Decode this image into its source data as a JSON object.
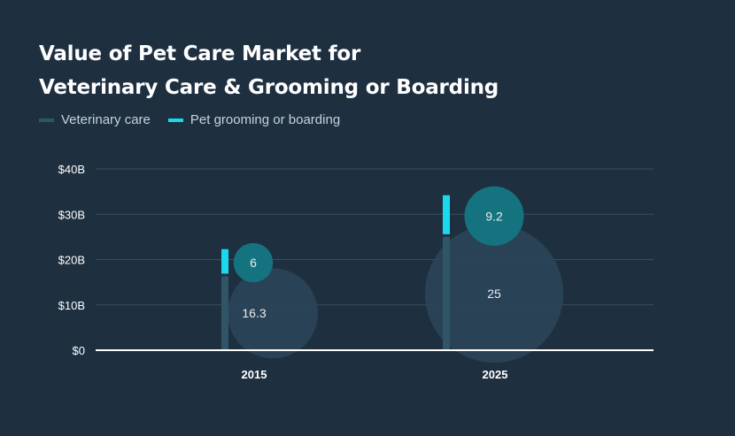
{
  "header": {
    "title_line1": "Value of Pet Care Market for",
    "title_line2": "Veterinary Care & Grooming or Boarding"
  },
  "legend": [
    {
      "label": "Veterinary care",
      "color": "#2f5567"
    },
    {
      "label": "Pet grooming or boarding",
      "color": "#1ad9ef"
    }
  ],
  "chart_data": {
    "type": "bar",
    "title": "Value of Pet Care Market for Veterinary Care & Grooming or Boarding",
    "categories": [
      "2015",
      "2025"
    ],
    "series": [
      {
        "name": "Veterinary care",
        "values": [
          16.3,
          25
        ],
        "color": "#2f5567",
        "bubble_color": "#2b4558"
      },
      {
        "name": "Pet grooming or boarding",
        "values": [
          6,
          9.2
        ],
        "color": "#1ad9ef",
        "bubble_color": "#15737f"
      }
    ],
    "stacked": true,
    "ylim": [
      0,
      40
    ],
    "yticks": [
      0,
      10,
      20,
      30,
      40
    ],
    "ytick_labels": [
      "$0",
      "$10B",
      "$20B",
      "$30B",
      "$40B"
    ],
    "data_labels": [
      [
        "16.3",
        "6"
      ],
      [
        "25",
        "9.2"
      ]
    ],
    "grid": true,
    "legend_position": "top-left"
  }
}
